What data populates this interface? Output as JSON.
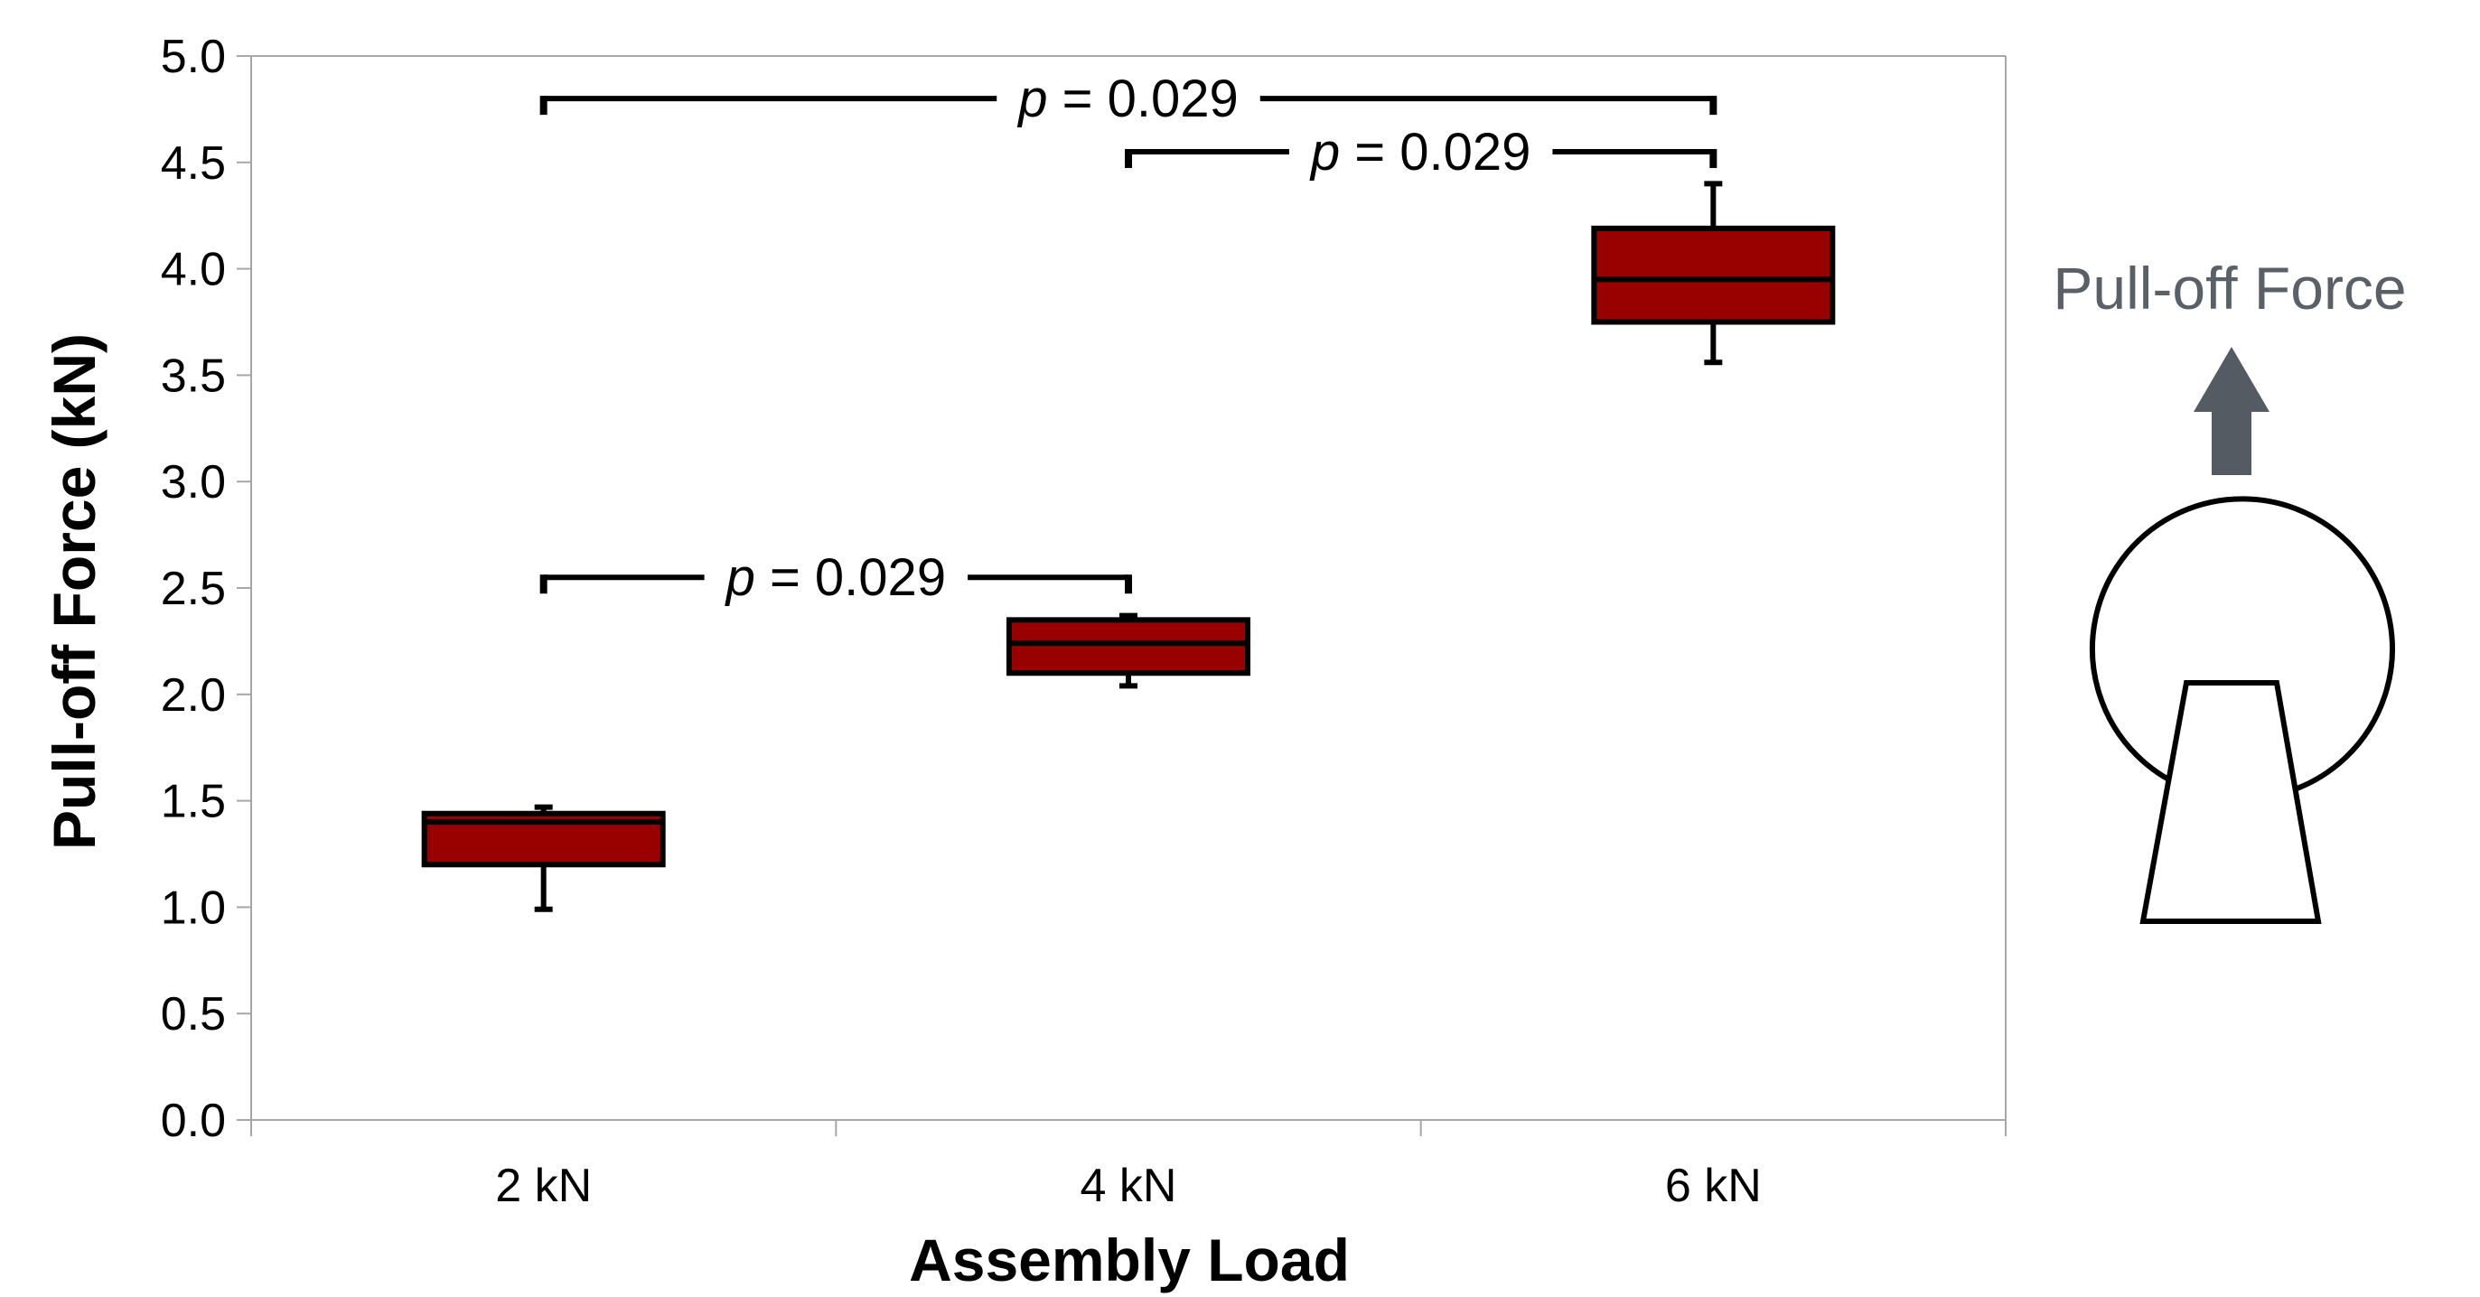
{
  "chart_data": {
    "type": "box",
    "xlabel": "Assembly Load",
    "ylabel": "Pull-off Force (kN)",
    "ylim": [
      0,
      5
    ],
    "y_ticks": [
      "0.0",
      "0.5",
      "1.0",
      "1.5",
      "2.0",
      "2.5",
      "3.0",
      "3.5",
      "4.0",
      "4.5",
      "5.0"
    ],
    "categories": [
      "2 kN",
      "4 kN",
      "6 kN"
    ],
    "boxes": [
      {
        "category": "2 kN",
        "min": 0.99,
        "q1": 1.2,
        "median": 1.4,
        "q3": 1.44,
        "max": 1.47
      },
      {
        "category": "4 kN",
        "min": 2.04,
        "q1": 2.1,
        "median": 2.24,
        "q3": 2.35,
        "max": 2.37
      },
      {
        "category": "6 kN",
        "min": 3.56,
        "q1": 3.75,
        "median": 3.95,
        "q3": 4.19,
        "max": 4.4
      }
    ],
    "grid": false,
    "colors": {
      "box_fill": "#990000",
      "box_edge": "#000000",
      "axis": "#a6a6a6"
    },
    "significance": [
      {
        "from": "2 kN",
        "to": "4 kN",
        "y": 2.55,
        "label_prefix": "p",
        "label_value": " = 0.029"
      },
      {
        "from": "4 kN",
        "to": "6 kN",
        "y": 4.55,
        "label_prefix": "p",
        "label_value": " = 0.029"
      },
      {
        "from": "2 kN",
        "to": "6 kN",
        "y": 4.8,
        "label_prefix": "p",
        "label_value": " = 0.029"
      }
    ]
  },
  "diagram": {
    "label": "Pull-off Force",
    "arrow_icon": "up-arrow-icon",
    "arrow_color": "#555b63"
  }
}
